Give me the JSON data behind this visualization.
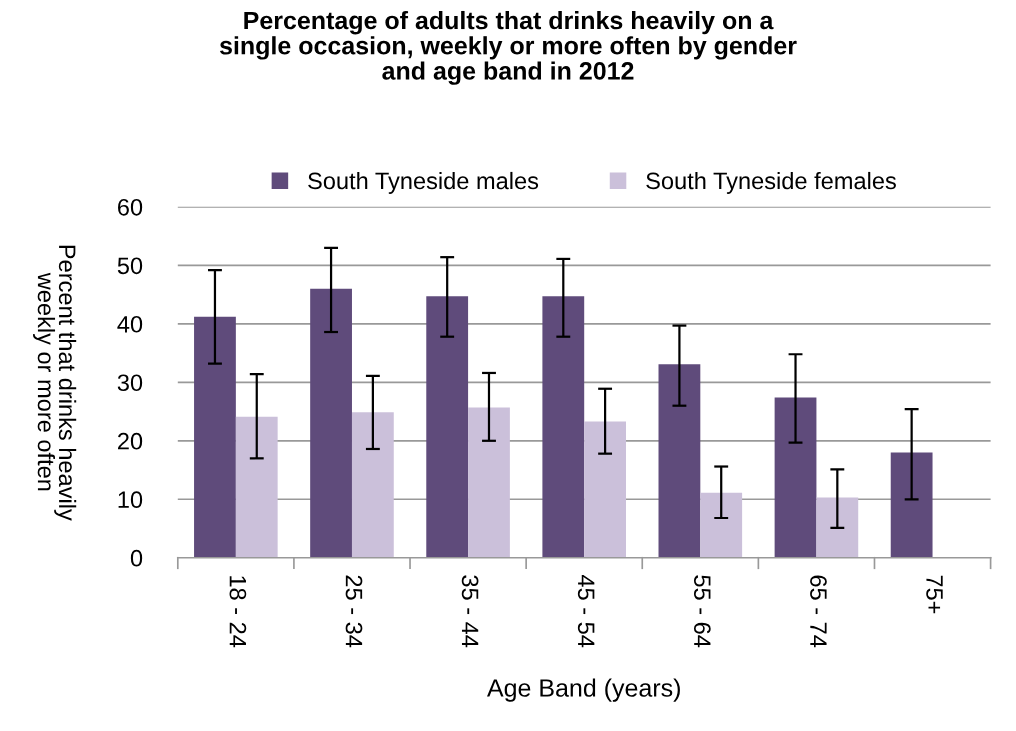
{
  "chart_data": {
    "type": "bar",
    "title": "Percentage of adults that drinks heavily on a\nsingle occasion, weekly or more often by gender\nand age band in 2012",
    "xlabel": "Age Band (years)",
    "ylabel": "Percent that drinks heavily\nweekly or more often",
    "categories": [
      "18 - 24",
      "25 - 34",
      "35 - 44",
      "45 - 54",
      "55 - 64",
      "65 - 74",
      "75+"
    ],
    "series": [
      {
        "name": "South Tyneside males",
        "color": "#5f4b7b",
        "values": [
          41.2,
          46.0,
          44.7,
          44.7,
          33.1,
          27.4,
          18.0
        ],
        "errors": [
          [
            33.2,
            49.2
          ],
          [
            38.6,
            53.0
          ],
          [
            37.8,
            51.4
          ],
          [
            37.8,
            51.1
          ],
          [
            26.0,
            39.7
          ],
          [
            19.7,
            34.8
          ],
          [
            10.0,
            25.4
          ]
        ]
      },
      {
        "name": "South Tyneside females",
        "color": "#cbc0da",
        "values": [
          24.1,
          24.9,
          25.7,
          23.3,
          11.1,
          10.3,
          null
        ],
        "errors": [
          [
            17.0,
            31.4
          ],
          [
            18.6,
            31.1
          ],
          [
            20.0,
            31.6
          ],
          [
            17.8,
            28.9
          ],
          [
            6.8,
            15.6
          ],
          [
            5.1,
            15.1
          ],
          null
        ]
      }
    ],
    "ylim": [
      0,
      60
    ],
    "yticks": [
      0,
      10,
      20,
      30,
      40,
      50,
      60
    ],
    "grid": "y",
    "legend": "top"
  }
}
